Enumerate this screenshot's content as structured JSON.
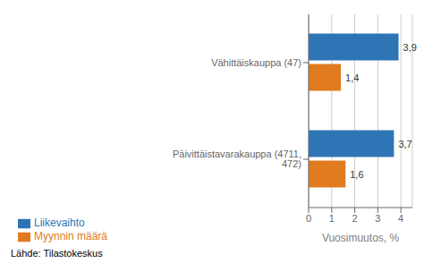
{
  "chart_data": {
    "type": "bar",
    "orientation": "horizontal",
    "categories": [
      "Päivittäistavarakauppa (4711, 472)",
      "Vähittäiskauppa (47)"
    ],
    "series": [
      {
        "name": "Liikevaihto",
        "color": "#2E75B6",
        "values": [
          3.7,
          3.9
        ],
        "value_labels": [
          "3,7",
          "3,9"
        ]
      },
      {
        "name": "Myynnin määrä",
        "color": "#E07B20",
        "values": [
          1.6,
          1.4
        ],
        "value_labels": [
          "1,6",
          "1,4"
        ]
      }
    ],
    "xlabel": "Vuosimuutos, %",
    "xlim": [
      0,
      4.5
    ],
    "xticks": [
      0,
      1,
      2,
      3,
      4
    ],
    "grid": true,
    "data_labels": true,
    "legend": "lower left",
    "annotations": [
      "Lähde: Tilastokeskus"
    ]
  }
}
